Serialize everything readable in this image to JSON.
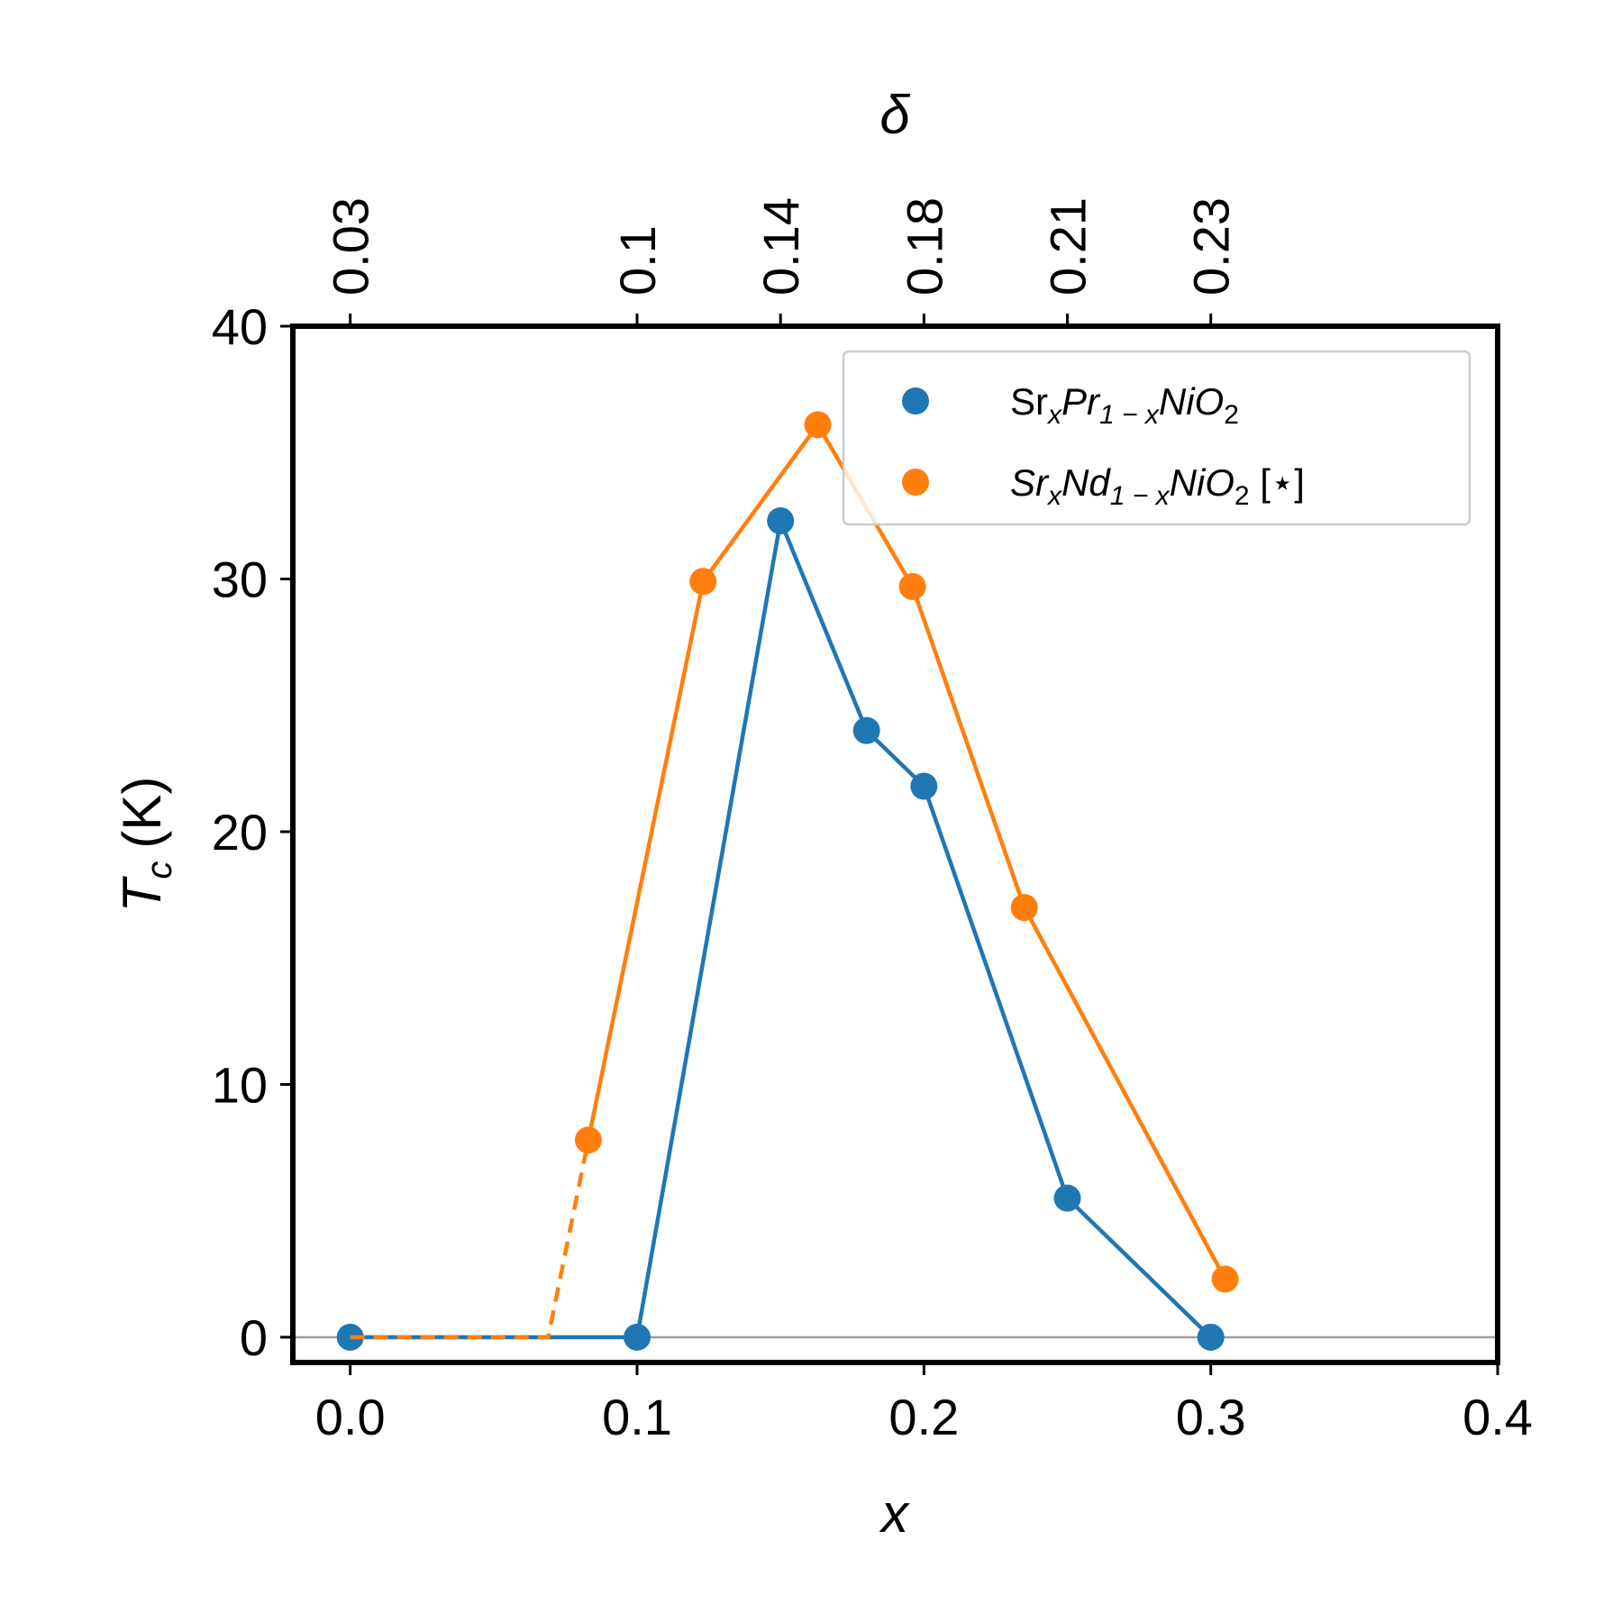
{
  "chart_data": {
    "type": "line",
    "xlabel": "x",
    "ylabel": "T",
    "ylabel_sub": "c",
    "ylabel_unit": "(K)",
    "top_xlabel": "δ",
    "xlim": [
      -0.02,
      0.4
    ],
    "ylim": [
      -1,
      40
    ],
    "x_ticks": [
      "0.0",
      "0.1",
      "0.2",
      "0.3",
      "0.4"
    ],
    "y_ticks": [
      "0",
      "10",
      "20",
      "30",
      "40"
    ],
    "top_ticks": [
      {
        "x": 0.0,
        "label": "0.03"
      },
      {
        "x": 0.1,
        "label": "0.1"
      },
      {
        "x": 0.15,
        "label": "0.14"
      },
      {
        "x": 0.2,
        "label": "0.18"
      },
      {
        "x": 0.25,
        "label": "0.21"
      },
      {
        "x": 0.3,
        "label": "0.23"
      }
    ],
    "zero_line": true,
    "grid": false,
    "legend_position": "top-right",
    "series": [
      {
        "name": "Sr_x Pr_1-x NiO_2",
        "name_parts": [
          {
            "text": "Sr",
            "style": "normal"
          },
          {
            "text": "x",
            "style": "sub-italic"
          },
          {
            "text": "Pr",
            "style": "italic"
          },
          {
            "text": "1 − x",
            "style": "sub-italic"
          },
          {
            "text": "NiO",
            "style": "italic"
          },
          {
            "text": "2",
            "style": "sub"
          }
        ],
        "color": "#1f77b4",
        "x": [
          0.0,
          0.1,
          0.15,
          0.18,
          0.2,
          0.25,
          0.3
        ],
        "y": [
          0.0,
          0.0,
          32.3,
          24.0,
          21.8,
          5.5,
          0.0
        ]
      },
      {
        "name": "Sr_x Nd_1-x NiO_2 [⋆]",
        "name_parts": [
          {
            "text": "Sr",
            "style": "italic"
          },
          {
            "text": "x",
            "style": "sub-italic"
          },
          {
            "text": "Nd",
            "style": "italic"
          },
          {
            "text": "1 − x",
            "style": "sub-italic"
          },
          {
            "text": "NiO",
            "style": "italic"
          },
          {
            "text": "2",
            "style": "sub"
          },
          {
            "text": " [⋆]",
            "style": "normal"
          }
        ],
        "color": "#ff7f0e",
        "x": [
          0.083,
          0.123,
          0.163,
          0.196,
          0.235,
          0.305
        ],
        "y": [
          7.8,
          29.9,
          36.1,
          29.7,
          17.0,
          2.3
        ],
        "dashed_segment": {
          "x": [
            0.0,
            0.069,
            0.083
          ],
          "y": [
            0.0,
            0.0,
            7.8
          ]
        }
      }
    ]
  }
}
